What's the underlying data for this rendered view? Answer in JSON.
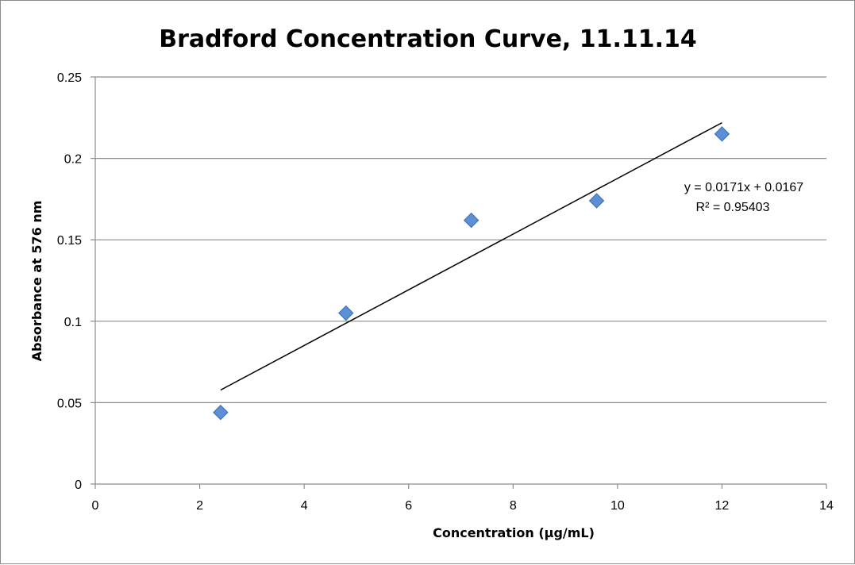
{
  "chart_data": {
    "type": "scatter",
    "title": "Bradford Concentration Curve, 11.11.14",
    "xlabel": "Concentration (µg/mL)",
    "ylabel": "Absorbance at 576 nm",
    "xlim": [
      0,
      14
    ],
    "ylim": [
      0,
      0.25
    ],
    "x_ticks": [
      0,
      2,
      4,
      6,
      8,
      10,
      12,
      14
    ],
    "y_ticks": [
      0,
      0.05,
      0.1,
      0.15,
      0.2,
      0.25
    ],
    "grid": "horizontal",
    "legend": "none",
    "marker": "diamond",
    "marker_color": "#5b8fd6",
    "series": [
      {
        "x": [
          2.4,
          4.8,
          7.2,
          9.6,
          12
        ],
        "y": [
          0.044,
          0.105,
          0.162,
          0.174,
          0.215
        ]
      }
    ],
    "trendline": {
      "type": "linear",
      "slope": 0.0171,
      "intercept": 0.0167,
      "x_range": [
        2.4,
        12
      ],
      "equation": "y = 0.0171x + 0.0167",
      "r_squared": "R² = 0.95403"
    }
  }
}
